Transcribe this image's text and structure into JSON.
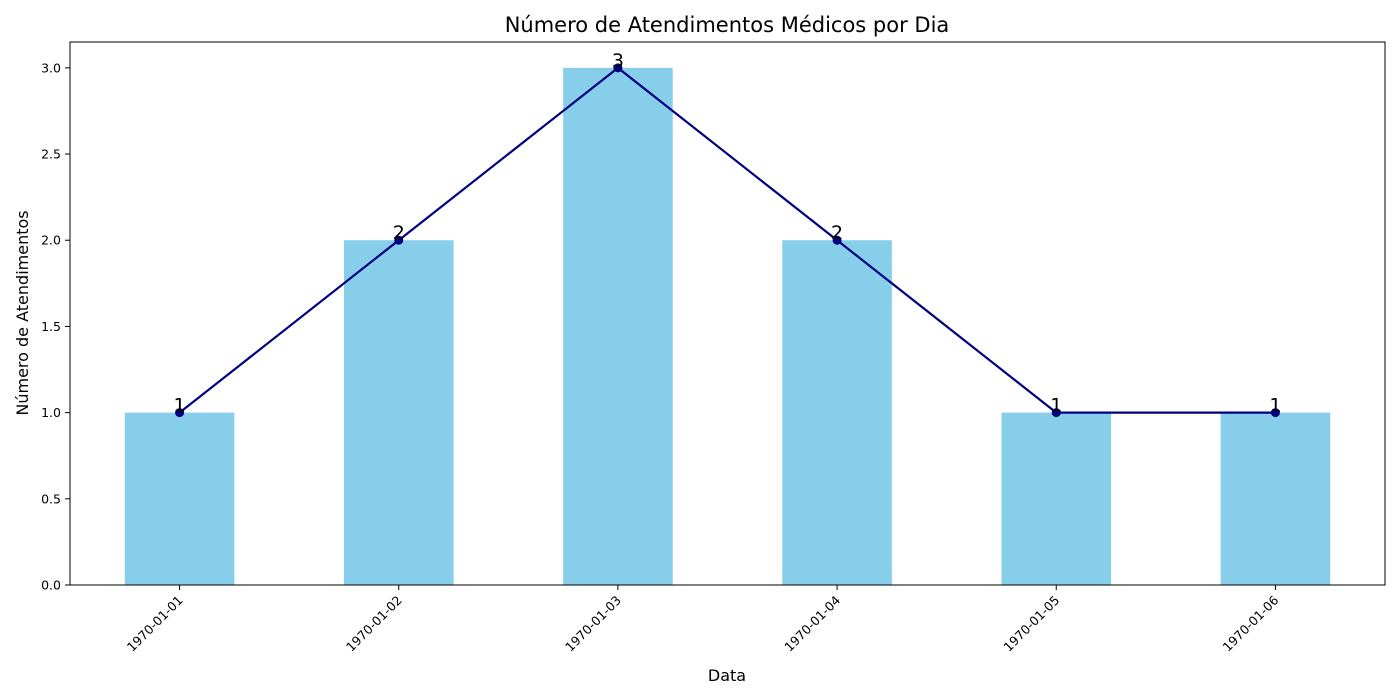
{
  "chart_data": {
    "type": "bar",
    "title": "Número de Atendimentos Médicos por Dia",
    "xlabel": "Data",
    "ylabel": "Número de Atendimentos",
    "categories": [
      "1970-01-01",
      "1970-01-02",
      "1970-01-03",
      "1970-01-04",
      "1970-01-05",
      "1970-01-06"
    ],
    "values": [
      1,
      2,
      3,
      2,
      1,
      1
    ],
    "ylim": [
      0,
      3.15
    ],
    "yticks": [
      "0.0",
      "0.5",
      "1.0",
      "1.5",
      "2.0",
      "2.5",
      "3.0"
    ],
    "grid": false,
    "overlay_line": true,
    "bar_color": "#87ceeb",
    "line_color": "#000080",
    "marker_color": "#000080"
  }
}
